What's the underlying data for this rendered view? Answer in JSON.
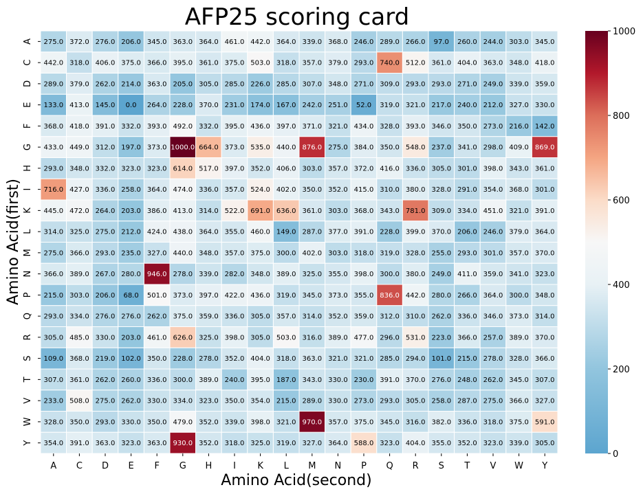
{
  "chart_data": {
    "type": "heatmap",
    "title": "AFP25 scoring card",
    "xlabel": "Amino Acid(second)",
    "ylabel": "Amino Acid(first)",
    "x_categories": [
      "A",
      "C",
      "D",
      "E",
      "F",
      "G",
      "H",
      "I",
      "K",
      "L",
      "M",
      "N",
      "P",
      "Q",
      "R",
      "S",
      "T",
      "V",
      "W",
      "Y"
    ],
    "y_categories": [
      "A",
      "C",
      "D",
      "E",
      "F",
      "G",
      "H",
      "I",
      "K",
      "L",
      "M",
      "N",
      "P",
      "Q",
      "R",
      "S",
      "T",
      "V",
      "W",
      "Y"
    ],
    "values": [
      [
        275,
        372,
        276,
        206,
        345,
        363,
        364,
        461,
        442,
        364,
        339,
        368,
        246,
        289,
        266,
        97,
        260,
        244,
        303,
        345
      ],
      [
        442,
        318,
        406,
        375,
        366,
        395,
        361,
        375,
        503,
        318,
        357,
        379,
        293,
        740,
        512,
        361,
        404,
        363,
        348,
        418
      ],
      [
        289,
        379,
        262,
        214,
        363,
        205,
        305,
        285,
        226,
        285,
        307,
        348,
        271,
        309,
        293,
        293,
        271,
        249,
        339,
        359
      ],
      [
        133,
        413,
        145,
        0,
        264,
        228,
        370,
        231,
        174,
        167,
        242,
        251,
        52,
        319,
        321,
        217,
        240,
        212,
        327,
        330
      ],
      [
        368,
        418,
        391,
        332,
        393,
        492,
        332,
        395,
        436,
        397,
        371,
        321,
        434,
        328,
        393,
        346,
        350,
        273,
        216,
        142
      ],
      [
        433,
        449,
        312,
        197,
        373,
        1000,
        664,
        373,
        535,
        440,
        876,
        275,
        384,
        350,
        548,
        237,
        341,
        298,
        409,
        869
      ],
      [
        293,
        348,
        332,
        323,
        323,
        614,
        517,
        397,
        352,
        406,
        303,
        357,
        372,
        416,
        336,
        305,
        301,
        398,
        343,
        361
      ],
      [
        716,
        427,
        336,
        258,
        364,
        474,
        336,
        357,
        524,
        402,
        350,
        352,
        415,
        310,
        380,
        328,
        291,
        354,
        368,
        301
      ],
      [
        445,
        472,
        264,
        203,
        386,
        413,
        314,
        522,
        691,
        636,
        361,
        303,
        368,
        343,
        781,
        309,
        334,
        451,
        321,
        391
      ],
      [
        314,
        325,
        275,
        212,
        424,
        438,
        364,
        355,
        460,
        149,
        287,
        377,
        391,
        228,
        399,
        370,
        206,
        246,
        379,
        364
      ],
      [
        275,
        366,
        293,
        235,
        327,
        440,
        348,
        357,
        375,
        300,
        402,
        303,
        318,
        319,
        328,
        255,
        293,
        301,
        357,
        370
      ],
      [
        366,
        389,
        267,
        280,
        946,
        278,
        339,
        282,
        348,
        389,
        325,
        355,
        398,
        300,
        380,
        249,
        411,
        359,
        341,
        323
      ],
      [
        215,
        303,
        206,
        68,
        501,
        373,
        397,
        422,
        436,
        319,
        345,
        373,
        355,
        836,
        442,
        280,
        266,
        364,
        300,
        348
      ],
      [
        293,
        334,
        276,
        276,
        262,
        375,
        359,
        336,
        305,
        357,
        314,
        352,
        359,
        312,
        310,
        262,
        336,
        346,
        373,
        314
      ],
      [
        305,
        485,
        330,
        203,
        461,
        626,
        325,
        398,
        305,
        503,
        316,
        389,
        477,
        296,
        531,
        223,
        366,
        257,
        389,
        370
      ],
      [
        109,
        368,
        219,
        102,
        350,
        228,
        278,
        352,
        404,
        318,
        363,
        321,
        321,
        285,
        294,
        101,
        215,
        278,
        328,
        366
      ],
      [
        307,
        361,
        262,
        260,
        336,
        300,
        389,
        240,
        395,
        187,
        343,
        330,
        230,
        391,
        370,
        276,
        248,
        262,
        345,
        307
      ],
      [
        233,
        508,
        275,
        262,
        330,
        334,
        323,
        350,
        354,
        215,
        289,
        330,
        273,
        293,
        305,
        258,
        287,
        275,
        366,
        327
      ],
      [
        328,
        350,
        293,
        330,
        350,
        479,
        352,
        339,
        398,
        321,
        970,
        357,
        375,
        345,
        316,
        382,
        336,
        318,
        375,
        591
      ],
      [
        354,
        391,
        363,
        323,
        363,
        930,
        352,
        318,
        325,
        319,
        327,
        364,
        588,
        323,
        404,
        355,
        352,
        323,
        339,
        305
      ]
    ],
    "value_format": "0.0",
    "vmin": 0,
    "vmax": 1000,
    "colormap": "RdBu_r (centered)",
    "colorbar_ticks": [
      0,
      200,
      400,
      600,
      800,
      1000
    ],
    "colors": {
      "low": "#5ca5cf",
      "mid": "#f7f7f7",
      "high": "#67001f",
      "grid": "#ffffff"
    }
  }
}
